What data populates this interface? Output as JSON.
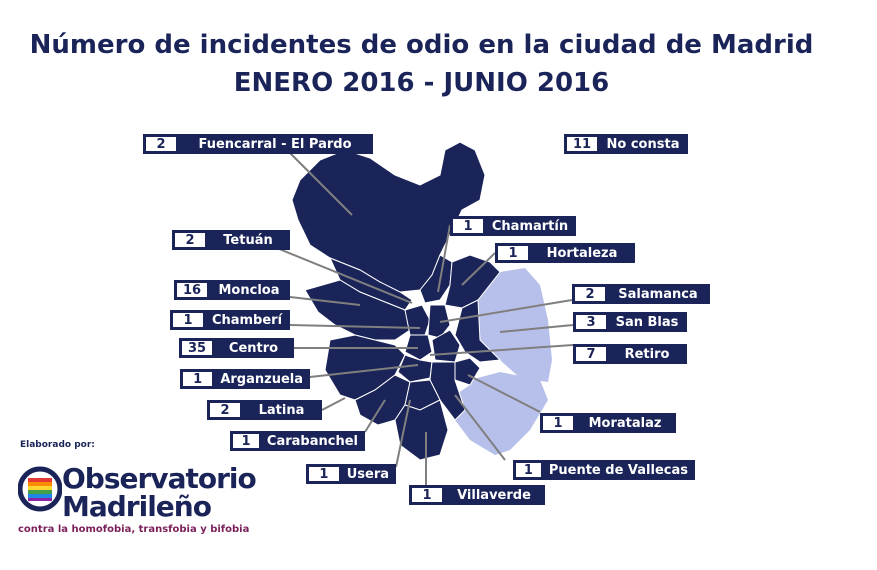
{
  "title": {
    "line1": "Número de incidentes de odio en la ciudad de Madrid",
    "line2": "ENERO 2016 - JUNIO 2016"
  },
  "colors": {
    "district_with_incidents": "#1b2459",
    "district_without_incidents": "#b7c0ea",
    "label_bg": "#1b2459",
    "leader_line": "#7f7f7f"
  },
  "districts": [
    {
      "name": "Fuencarral - El Pardo",
      "count": "2"
    },
    {
      "name": "No consta",
      "count": "11"
    },
    {
      "name": "Chamartín",
      "count": "1"
    },
    {
      "name": "Tetuán",
      "count": "2"
    },
    {
      "name": "Hortaleza",
      "count": "1"
    },
    {
      "name": "Moncloa",
      "count": "16"
    },
    {
      "name": "Salamanca",
      "count": "2"
    },
    {
      "name": "Chamberí",
      "count": "1"
    },
    {
      "name": "San Blas",
      "count": "3"
    },
    {
      "name": "Centro",
      "count": "35"
    },
    {
      "name": "Retiro",
      "count": "7"
    },
    {
      "name": "Arganzuela",
      "count": "1"
    },
    {
      "name": "Latina",
      "count": "2"
    },
    {
      "name": "Moratalaz",
      "count": "1"
    },
    {
      "name": "Carabanchel",
      "count": "1"
    },
    {
      "name": "Puente de Vallecas",
      "count": "1"
    },
    {
      "name": "Usera",
      "count": "1"
    },
    {
      "name": "Villaverde",
      "count": "1"
    }
  ],
  "credits": {
    "elaborated_by": "Elaborado por:",
    "logo_line1": "Observatorio",
    "logo_line2": "Madrileño",
    "logo_subtitle": "contra la homofobia, transfobia y bifobia"
  }
}
